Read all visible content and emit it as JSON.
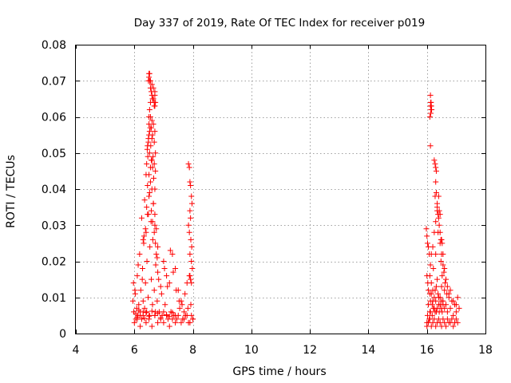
{
  "chart_data": {
    "type": "scatter",
    "title": "Day 337 of 2019, Rate Of TEC Index for receiver p019",
    "xlabel": "GPS time / hours",
    "ylabel": "ROTI / TECUs",
    "xlim": [
      4,
      18
    ],
    "ylim": [
      0,
      0.08
    ],
    "xticks": [
      4,
      6,
      8,
      10,
      12,
      14,
      16,
      18
    ],
    "xtick_labels": [
      "4",
      "6",
      "8",
      "10",
      "12",
      "14",
      "16",
      "18"
    ],
    "yticks": [
      0,
      0.01,
      0.02,
      0.03,
      0.04,
      0.05,
      0.06,
      0.07,
      0.08
    ],
    "ytick_labels": [
      "0",
      "0.01",
      "0.02",
      "0.03",
      "0.04",
      "0.05",
      "0.06",
      "0.07",
      "0.08"
    ],
    "grid": true,
    "marker": "+",
    "color": "#ff0000",
    "series": [
      {
        "name": "ROTI",
        "x": [
          5.95,
          5.98,
          6.02,
          6.05,
          6.08,
          6.1,
          6.12,
          6.15,
          6.18,
          6.2,
          6.22,
          6.25,
          6.28,
          6.3,
          6.32,
          6.35,
          6.38,
          6.4,
          6.42,
          6.45,
          6.47,
          6.5,
          6.52,
          6.55,
          6.58,
          6.6,
          6.62,
          6.65,
          6.68,
          6.7,
          6.72,
          6.75,
          6.78,
          6.8,
          6.85,
          6.9,
          6.95,
          7.0,
          7.05,
          7.1,
          7.15,
          7.2,
          7.25,
          7.3,
          7.35,
          7.4,
          7.45,
          7.5,
          7.55,
          7.6,
          7.65,
          7.7,
          7.75,
          7.8,
          7.85,
          7.9,
          7.95,
          8.0,
          6.0,
          6.1,
          6.2,
          6.3,
          6.4,
          6.5,
          6.6,
          6.7,
          6.8,
          6.9,
          7.0,
          7.1,
          7.2,
          7.3,
          7.4,
          7.5,
          7.6,
          7.7,
          7.8,
          7.9,
          8.0,
          5.97,
          6.03,
          6.13,
          6.27,
          6.33,
          6.43,
          6.53,
          6.57,
          6.63,
          6.73,
          6.83,
          6.93,
          7.03,
          7.13,
          7.23,
          7.33,
          7.43,
          7.53,
          7.63,
          7.73,
          7.83,
          7.93,
          6.25,
          6.3,
          6.35,
          6.38,
          6.42,
          6.45,
          6.48,
          6.5,
          6.52,
          6.55,
          6.58,
          6.6,
          6.62,
          6.65,
          6.68,
          6.7,
          6.72,
          6.75,
          6.78,
          6.8,
          6.4,
          6.42,
          6.44,
          6.46,
          6.48,
          6.5,
          6.52,
          6.54,
          6.56,
          6.58,
          6.6,
          6.62,
          6.64,
          6.66,
          6.68,
          6.7,
          6.72,
          6.45,
          6.48,
          6.5,
          6.52,
          6.55,
          6.58,
          6.6,
          6.62,
          6.65,
          6.68,
          6.7,
          6.72,
          6.5,
          6.52,
          6.55,
          6.6,
          6.65,
          6.68,
          6.7,
          6.72,
          6.48,
          6.5,
          6.52,
          6.55,
          6.6,
          6.65,
          6.7,
          6.5,
          6.52,
          6.55,
          6.58,
          6.62,
          6.68,
          6.7,
          6.05,
          6.1,
          6.15,
          6.2,
          6.3,
          6.35,
          6.4,
          6.5,
          6.6,
          6.7,
          6.8,
          6.9,
          7.0,
          7.1,
          7.2,
          7.3,
          7.4,
          7.85,
          7.88,
          7.9,
          7.92,
          7.95,
          7.97,
          7.9,
          7.92,
          7.85,
          7.88,
          7.93,
          7.96,
          7.9,
          7.95,
          7.98,
          7.88,
          7.92,
          7.95,
          16.0,
          16.02,
          16.05,
          16.08,
          16.1,
          16.12,
          16.15,
          16.18,
          16.2,
          16.22,
          16.25,
          16.28,
          16.3,
          16.32,
          16.35,
          16.38,
          16.4,
          16.42,
          16.45,
          16.48,
          16.5,
          16.52,
          16.55,
          16.58,
          16.6,
          16.62,
          16.65,
          16.68,
          16.7,
          16.75,
          16.8,
          16.85,
          16.9,
          16.95,
          17.0,
          17.05,
          17.1,
          16.0,
          16.05,
          16.1,
          16.15,
          16.2,
          16.25,
          16.3,
          16.35,
          16.4,
          16.45,
          16.5,
          16.55,
          16.6,
          16.65,
          16.7,
          16.75,
          16.8,
          16.85,
          16.9,
          16.95,
          17.0,
          17.05,
          16.05,
          16.1,
          16.12,
          16.15,
          16.2,
          16.25,
          16.3,
          16.35,
          16.4,
          16.45,
          16.5,
          16.55,
          16.6,
          16.65,
          16.7,
          16.75,
          16.8,
          16.9,
          17.0,
          16.1,
          16.12,
          16.15,
          16.18,
          16.2,
          16.22,
          16.25,
          16.28,
          16.3,
          16.32,
          16.35,
          16.38,
          16.4,
          16.42,
          16.45,
          16.48,
          16.5,
          16.52,
          16.55,
          16.6,
          16.12,
          16.13,
          16.14,
          16.15,
          16.13,
          16.12,
          16.14,
          16.16,
          16.13,
          16.1,
          16.12,
          16.25,
          16.28,
          16.3,
          16.32,
          16.3,
          16.28,
          16.35,
          16.32,
          16.35,
          16.38,
          16.4,
          16.42,
          16.45,
          16.48,
          16.5,
          16.55,
          16.52,
          16.45,
          15.98,
          16.0,
          16.02,
          16.05,
          16.08,
          16.0,
          16.03
        ],
        "y": [
          0.009,
          0.006,
          0.012,
          0.004,
          0.007,
          0.016,
          0.005,
          0.008,
          0.022,
          0.006,
          0.012,
          0.004,
          0.018,
          0.009,
          0.025,
          0.007,
          0.014,
          0.028,
          0.006,
          0.033,
          0.01,
          0.038,
          0.005,
          0.042,
          0.015,
          0.048,
          0.008,
          0.036,
          0.012,
          0.03,
          0.006,
          0.022,
          0.009,
          0.017,
          0.006,
          0.013,
          0.005,
          0.02,
          0.008,
          0.016,
          0.004,
          0.014,
          0.006,
          0.022,
          0.005,
          0.018,
          0.004,
          0.012,
          0.007,
          0.009,
          0.004,
          0.006,
          0.005,
          0.014,
          0.003,
          0.016,
          0.005,
          0.004,
          0.003,
          0.004,
          0.002,
          0.005,
          0.003,
          0.004,
          0.002,
          0.005,
          0.003,
          0.004,
          0.003,
          0.005,
          0.002,
          0.004,
          0.003,
          0.005,
          0.003,
          0.004,
          0.005,
          0.003,
          0.004,
          0.014,
          0.011,
          0.019,
          0.015,
          0.027,
          0.02,
          0.024,
          0.031,
          0.026,
          0.019,
          0.015,
          0.011,
          0.018,
          0.013,
          0.023,
          0.017,
          0.012,
          0.009,
          0.008,
          0.011,
          0.007,
          0.008,
          0.032,
          0.026,
          0.037,
          0.029,
          0.035,
          0.041,
          0.033,
          0.044,
          0.039,
          0.046,
          0.034,
          0.04,
          0.031,
          0.036,
          0.028,
          0.033,
          0.025,
          0.029,
          0.021,
          0.024,
          0.044,
          0.047,
          0.051,
          0.049,
          0.053,
          0.055,
          0.05,
          0.057,
          0.052,
          0.048,
          0.054,
          0.046,
          0.049,
          0.043,
          0.047,
          0.04,
          0.045,
          0.052,
          0.054,
          0.058,
          0.056,
          0.06,
          0.057,
          0.059,
          0.055,
          0.058,
          0.053,
          0.056,
          0.05,
          0.06,
          0.062,
          0.064,
          0.066,
          0.065,
          0.063,
          0.067,
          0.064,
          0.07,
          0.071,
          0.072,
          0.07,
          0.069,
          0.068,
          0.066,
          0.072,
          0.07,
          0.068,
          0.067,
          0.065,
          0.064,
          0.063,
          0.0055,
          0.0045,
          0.0065,
          0.005,
          0.006,
          0.0042,
          0.0058,
          0.0048,
          0.0062,
          0.005,
          0.0056,
          0.0044,
          0.006,
          0.0052,
          0.0047,
          0.0058,
          0.005,
          0.047,
          0.046,
          0.042,
          0.041,
          0.038,
          0.036,
          0.034,
          0.032,
          0.03,
          0.028,
          0.026,
          0.024,
          0.022,
          0.02,
          0.018,
          0.016,
          0.015,
          0.014,
          0.003,
          0.005,
          0.008,
          0.004,
          0.011,
          0.006,
          0.014,
          0.005,
          0.009,
          0.018,
          0.007,
          0.012,
          0.022,
          0.006,
          0.015,
          0.028,
          0.01,
          0.034,
          0.008,
          0.02,
          0.013,
          0.025,
          0.009,
          0.017,
          0.012,
          0.014,
          0.008,
          0.011,
          0.006,
          0.01,
          0.007,
          0.009,
          0.005,
          0.008,
          0.006,
          0.01,
          0.007,
          0.002,
          0.003,
          0.004,
          0.002,
          0.003,
          0.004,
          0.002,
          0.003,
          0.004,
          0.003,
          0.002,
          0.004,
          0.003,
          0.002,
          0.004,
          0.003,
          0.003,
          0.004,
          0.002,
          0.003,
          0.004,
          0.003,
          0.012,
          0.016,
          0.019,
          0.022,
          0.024,
          0.028,
          0.031,
          0.035,
          0.038,
          0.033,
          0.026,
          0.022,
          0.018,
          0.015,
          0.013,
          0.011,
          0.012,
          0.009,
          0.008,
          0.006,
          0.009,
          0.011,
          0.008,
          0.012,
          0.007,
          0.01,
          0.006,
          0.009,
          0.013,
          0.007,
          0.011,
          0.008,
          0.006,
          0.01,
          0.007,
          0.009,
          0.006,
          0.008,
          0.007,
          0.063,
          0.064,
          0.062,
          0.063,
          0.061,
          0.066,
          0.064,
          0.062,
          0.063,
          0.06,
          0.052,
          0.048,
          0.047,
          0.046,
          0.045,
          0.042,
          0.038,
          0.036,
          0.039,
          0.034,
          0.033,
          0.032,
          0.03,
          0.028,
          0.026,
          0.022,
          0.019,
          0.016,
          0.025,
          0.029,
          0.027,
          0.025,
          0.024,
          0.022,
          0.016,
          0.014
        ]
      }
    ]
  }
}
